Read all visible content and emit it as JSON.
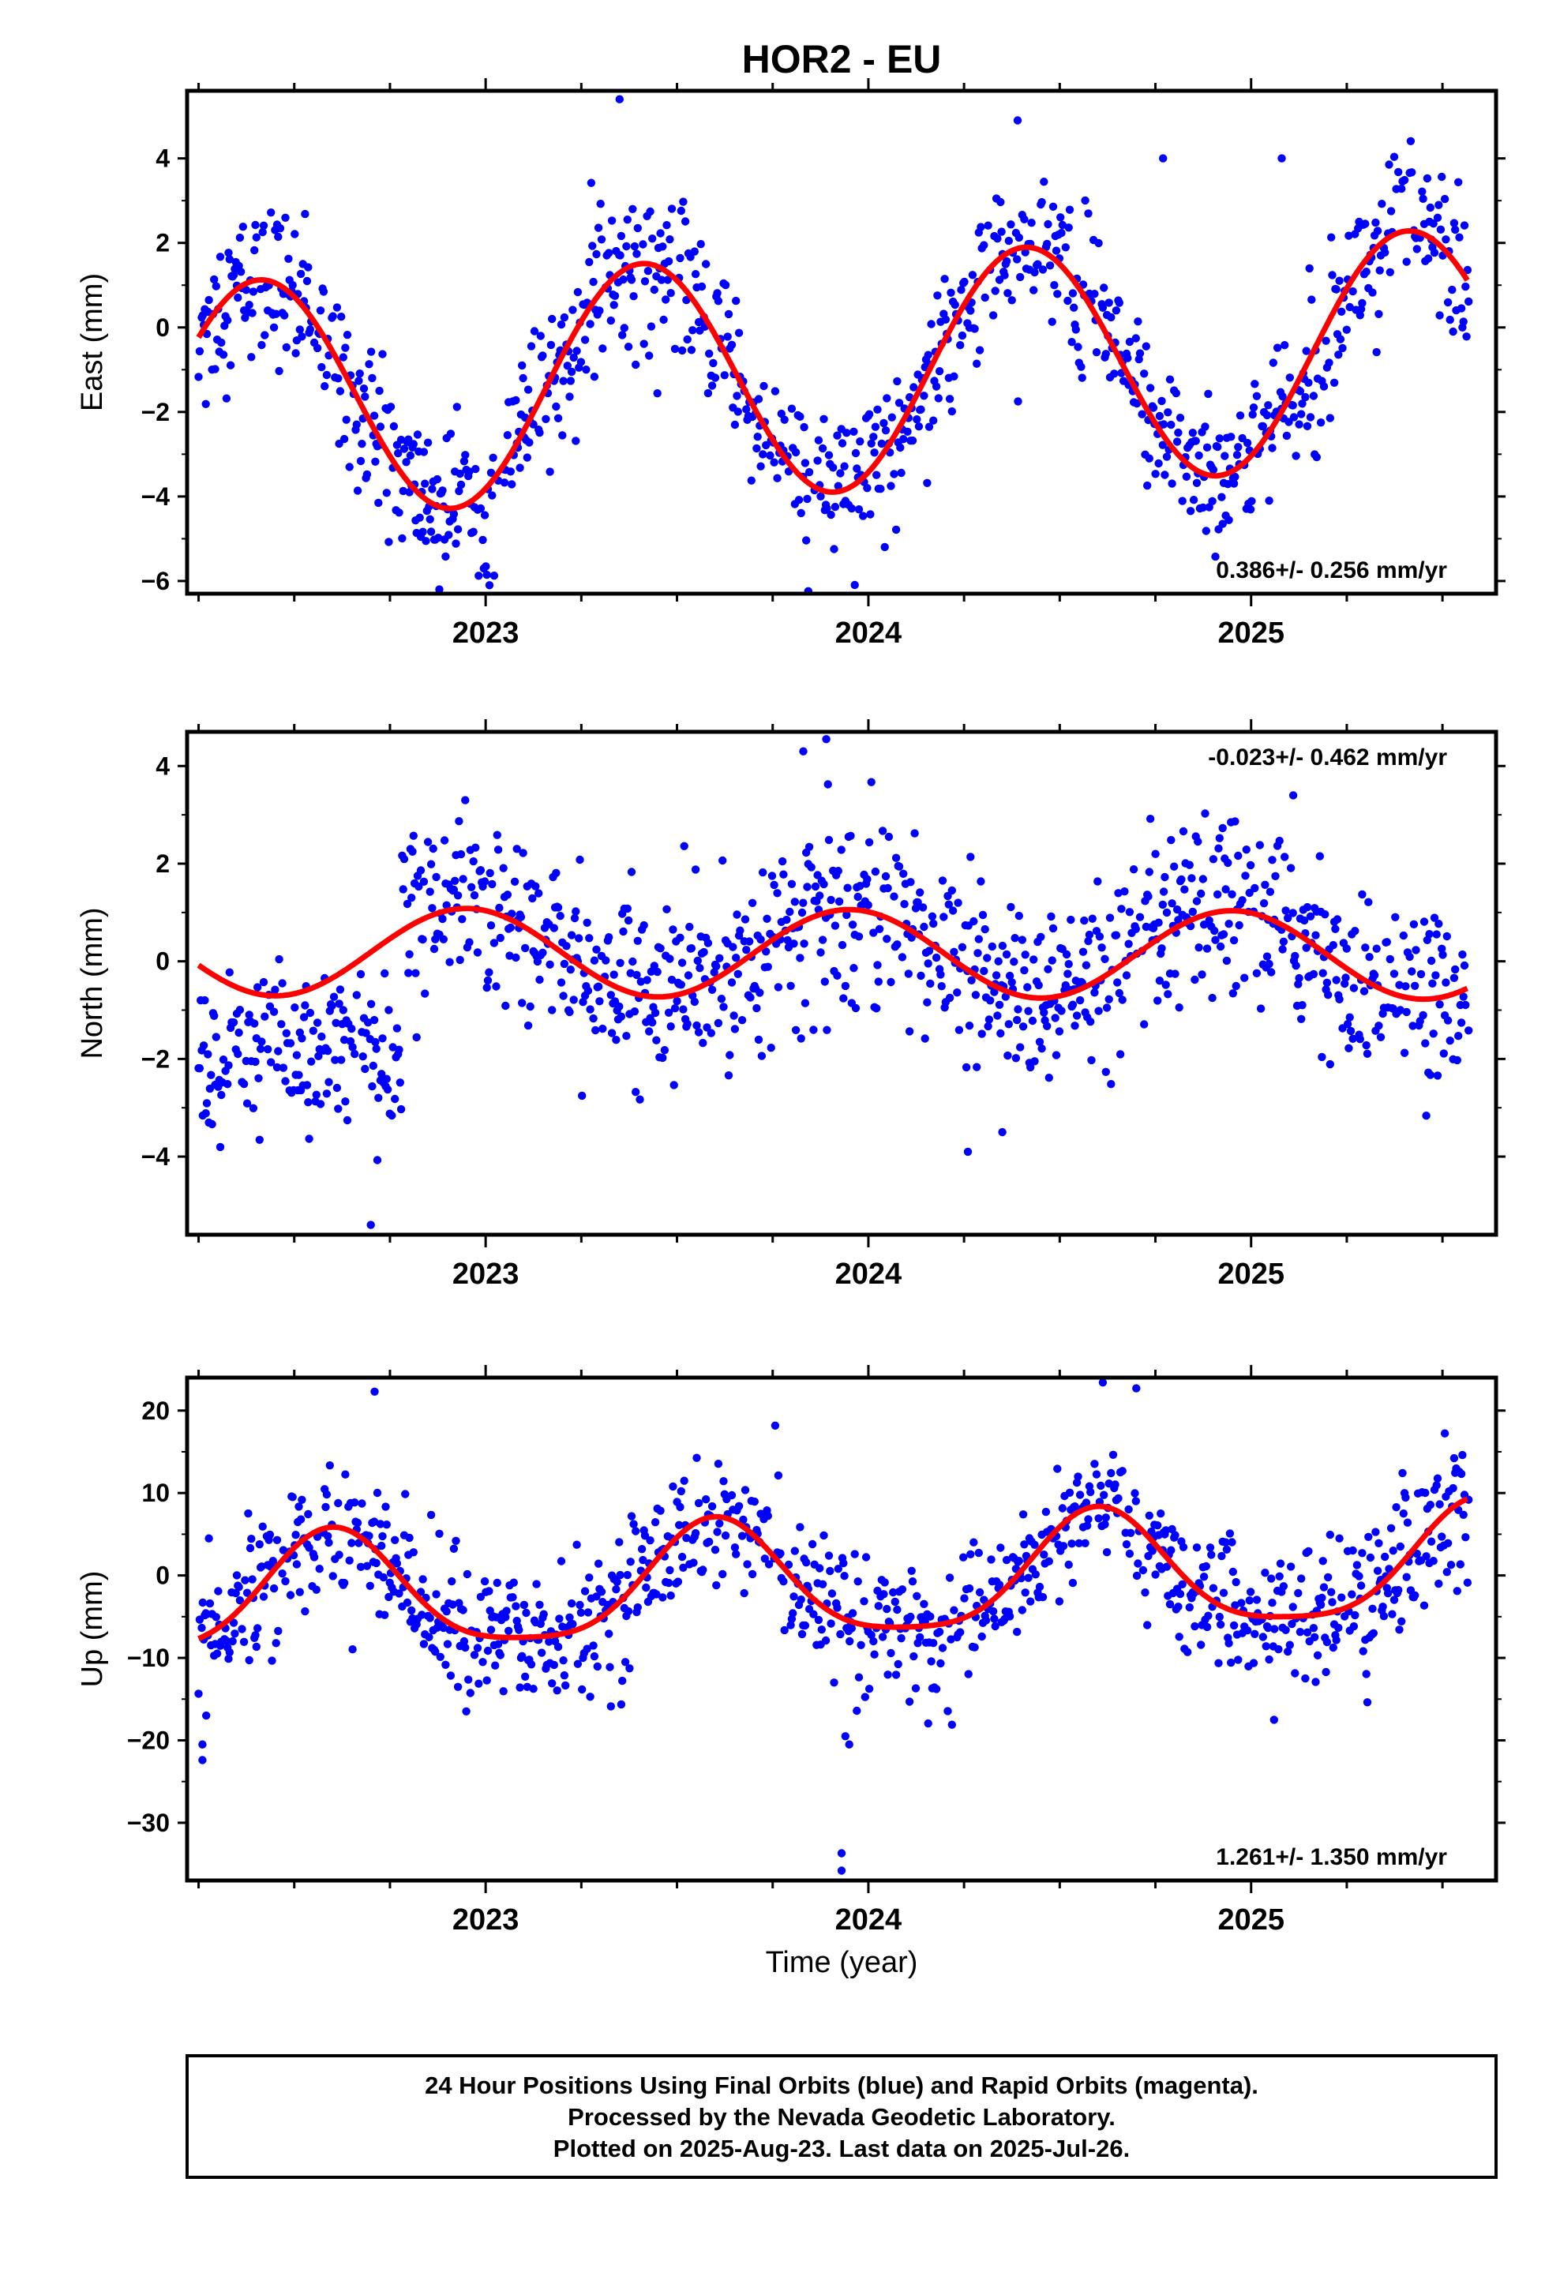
{
  "title": "HOR2 - EU",
  "xlabel": "Time (year)",
  "footer": [
    "24 Hour Positions Using Final Orbits (blue) and Rapid Orbits (magenta).",
    "Processed by the Nevada Geodetic Laboratory.",
    "Plotted on 2025-Aug-23. Last data on 2025-Jul-26."
  ],
  "colors": {
    "points": "#0000ff",
    "fit": "#ff0000",
    "frame": "#000000"
  },
  "chart_data": [
    {
      "type": "scatter",
      "name": "east",
      "ylabel": "East (mm)",
      "rate_label": "0.386+/- 0.256 mm/yr",
      "xlim": [
        2022.22,
        2025.64
      ],
      "ylim": [
        -6.3,
        5.6
      ],
      "yticks": [
        4,
        2,
        0,
        -2,
        -4,
        -6
      ],
      "ytick_labels": [
        "4",
        "2",
        "0",
        "−2",
        "−4",
        "−6"
      ],
      "xticks": [
        2023,
        2024,
        2025
      ],
      "xtick_labels": [
        "2023",
        "2024",
        "2025"
      ],
      "fit": {
        "trend": 0.386,
        "annual_amp": 2.8,
        "annual_phase": 2022.41,
        "semi_amp": 0.0,
        "semi_phase": 2022.0,
        "offset": -1.1
      },
      "noise": 0.9,
      "outliers": [
        [
          2023.01,
          -6.1
        ],
        [
          2023.35,
          5.4
        ],
        [
          2024.39,
          4.9
        ],
        [
          2024.77,
          4.0
        ],
        [
          2025.08,
          4.0
        ]
      ],
      "series": [
        {
          "name": "",
          "role": "daily positions"
        },
        {
          "name": "",
          "role": "model fit"
        }
      ]
    },
    {
      "type": "scatter",
      "name": "north",
      "ylabel": "North (mm)",
      "rate_label": "-0.023+/- 0.462 mm/yr",
      "xlim": [
        2022.22,
        2025.64
      ],
      "ylim": [
        -5.6,
        4.7
      ],
      "yticks": [
        4,
        2,
        0,
        -2,
        -4
      ],
      "ytick_labels": [
        "4",
        "2",
        "0",
        "−2",
        "−4"
      ],
      "xticks": [
        2023,
        2024,
        2025
      ],
      "xtick_labels": [
        "2023",
        "2024",
        "2025"
      ],
      "fit": {
        "trend": -0.023,
        "annual_amp": 0.9,
        "annual_phase": 2022.95,
        "semi_amp": 0.0,
        "semi_phase": 2022.0,
        "offset": 0.16
      },
      "noise": 0.9,
      "outliers": [
        [
          2022.7,
          -5.4
        ],
        [
          2023.89,
          4.55
        ],
        [
          2023.83,
          4.3
        ],
        [
          2024.26,
          -3.9
        ],
        [
          2024.35,
          -3.5
        ],
        [
          2025.11,
          3.4
        ]
      ],
      "segments": [
        [
          2022.22,
          2022.78,
          -2.2
        ]
      ],
      "series": [
        {
          "name": "",
          "role": "daily positions"
        },
        {
          "name": "",
          "role": "model fit"
        }
      ]
    },
    {
      "type": "scatter",
      "name": "up",
      "ylabel": "Up (mm)",
      "rate_label": "1.261+/- 1.350 mm/yr",
      "xlim": [
        2022.22,
        2025.64
      ],
      "ylim": [
        -37,
        24
      ],
      "yticks": [
        20,
        10,
        0,
        -10,
        -20,
        -30
      ],
      "ytick_labels": [
        "20",
        "10",
        "0",
        "−10",
        "−20",
        "−30"
      ],
      "xticks": [
        2023,
        2024,
        2025
      ],
      "xtick_labels": [
        "2023",
        "2024",
        "2025"
      ],
      "fit": {
        "trend": 1.261,
        "annual_amp": 7.0,
        "annual_phase": 2022.6,
        "semi_amp": 1.5,
        "semi_phase": 2022.6,
        "offset": -1.0
      },
      "noise": 4.2,
      "outliers": [
        [
          2022.26,
          -22.4
        ],
        [
          2022.26,
          -20.5
        ],
        [
          2022.27,
          -17.0
        ],
        [
          2022.71,
          22.3
        ],
        [
          2023.93,
          -33.7
        ],
        [
          2023.93,
          -35.8
        ],
        [
          2023.94,
          -19.5
        ],
        [
          2023.95,
          -20.5
        ],
        [
          2024.7,
          22.7
        ],
        [
          2025.06,
          -17.5
        ]
      ],
      "series": [
        {
          "name": "",
          "role": "daily positions"
        },
        {
          "name": "",
          "role": "model fit"
        }
      ]
    }
  ]
}
